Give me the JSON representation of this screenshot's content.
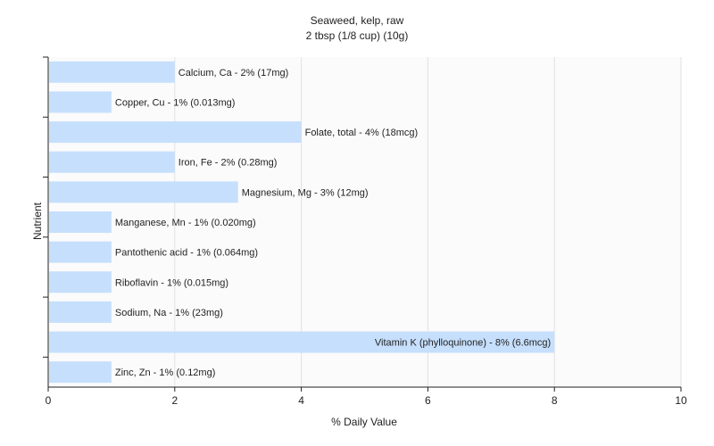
{
  "chart_data": {
    "type": "bar",
    "orientation": "horizontal",
    "title": "Seaweed, kelp, raw",
    "subtitle": "2 tbsp (1/8 cup) (10g)",
    "xlabel": "% Daily Value",
    "ylabel": "Nutrient",
    "xlim": [
      0,
      10
    ],
    "xticks": [
      "0",
      "2",
      "4",
      "6",
      "8",
      "10"
    ],
    "grid": true,
    "bar_color": "#c6dffc",
    "categories": [
      "Calcium, Ca",
      "Copper, Cu",
      "Folate, total",
      "Iron, Fe",
      "Magnesium, Mg",
      "Manganese, Mn",
      "Pantothenic acid",
      "Riboflavin",
      "Sodium, Na",
      "Vitamin K (phylloquinone)",
      "Zinc, Zn"
    ],
    "values": [
      2,
      1,
      4,
      2,
      3,
      1,
      1,
      1,
      1,
      8,
      1
    ],
    "labels": [
      "Calcium, Ca - 2% (17mg)",
      "Copper, Cu - 1% (0.013mg)",
      "Folate, total - 4% (18mcg)",
      "Iron, Fe - 2% (0.28mg)",
      "Magnesium, Mg - 3% (12mg)",
      "Manganese, Mn - 1% (0.020mg)",
      "Pantothenic acid - 1% (0.064mg)",
      "Riboflavin - 1% (0.015mg)",
      "Sodium, Na - 1% (23mg)",
      "Vitamin K (phylloquinone) - 8% (6.6mcg)",
      "Zinc, Zn - 1% (0.12mg)"
    ]
  }
}
